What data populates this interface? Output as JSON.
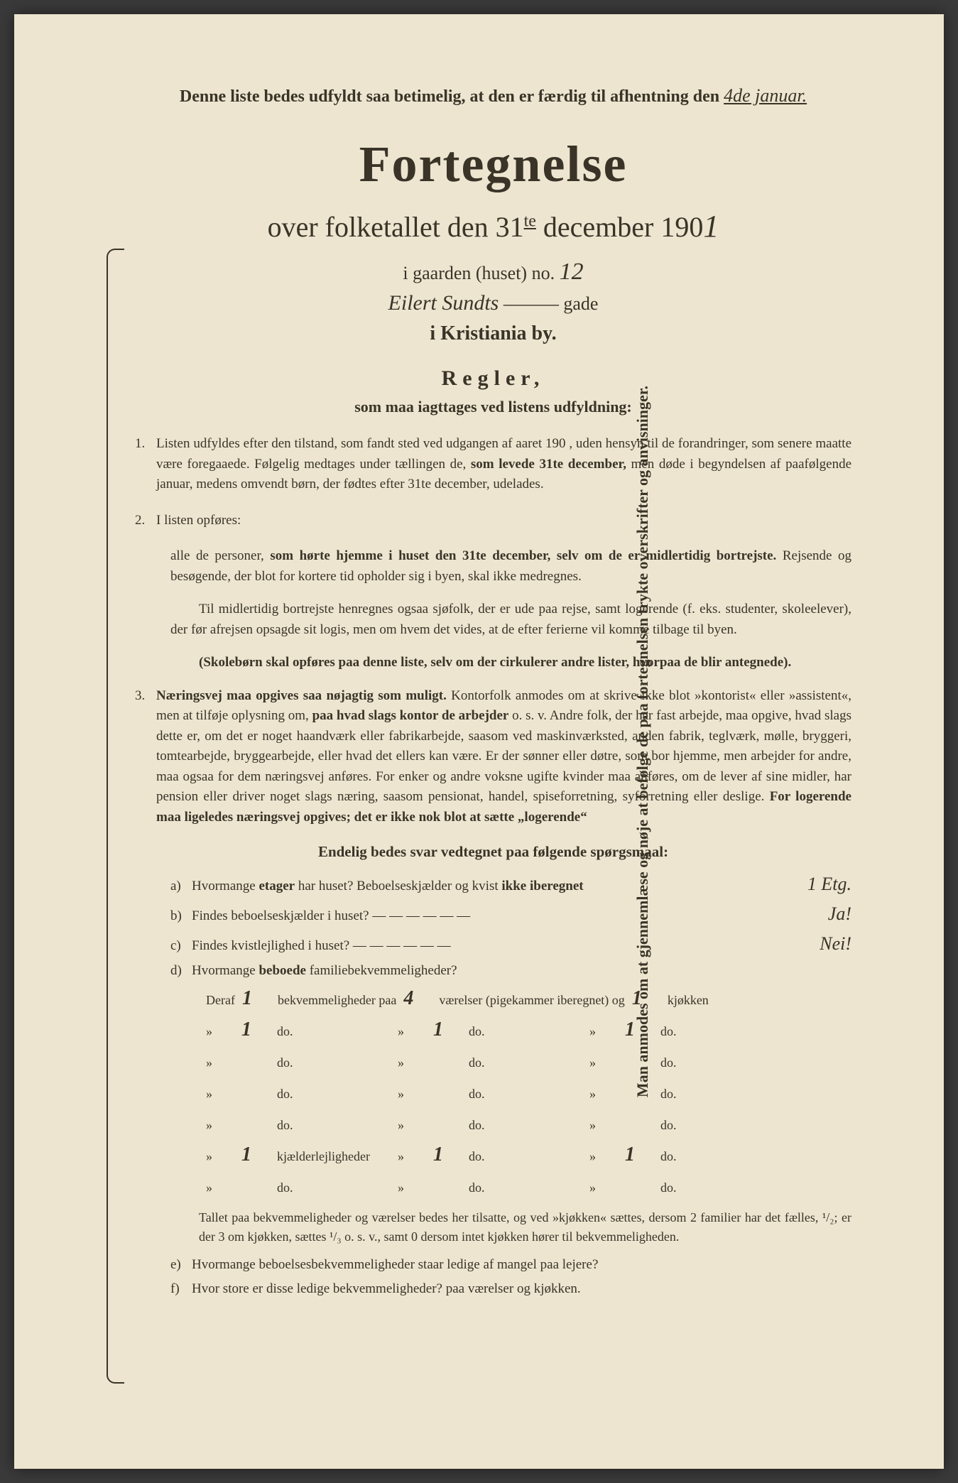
{
  "colors": {
    "paper": "#ede5d0",
    "ink": "#3a3428",
    "background": "#3a3a3a"
  },
  "vertical_text": "Man anmodes om at gjennemlæse og nøje at befølge de paa fortegnelsen trykte overskrifter og anvisninger.",
  "top_notice": {
    "prefix": "Denne liste bedes udfyldt saa betimelig, at den er færdig til afhentning den ",
    "date": "4de januar."
  },
  "main_title": "Fortegnelse",
  "subtitle": {
    "prefix": "over folketallet den 31",
    "sup": "te",
    "mid": " december 190",
    "year_hand": "1"
  },
  "location": {
    "gaarden_prefix": "i gaarden (huset) no. ",
    "house_no": "12",
    "street_name": "Eilert Sundts",
    "street_suffix": "gade",
    "city": "i Kristiania by."
  },
  "regler_title": "Regler,",
  "regler_sub": "som maa iagttages ved listens udfyldning:",
  "rules": [
    {
      "num": "1.",
      "text": "Listen udfyldes efter den tilstand, som fandt sted ved udgangen af aaret 190 , uden hensyn til de forandringer, som senere maatte være foregaaede. Følgelig medtages under tællingen de, <b>som levede 31te december,</b> men døde i begyndelsen af paafølgende januar, medens omvendt børn, der fødtes efter 31te december, udelades."
    },
    {
      "num": "2.",
      "text": "I listen opføres:"
    }
  ],
  "rule2_sub1": "alle de personer, <b>som hørte hjemme i huset den 31te december, selv om de er midlertidig bortrejste.</b> Rejsende og besøgende, der blot for kortere tid opholder sig i byen, skal ikke medregnes.",
  "rule2_sub2": "Til midlertidig bortrejste henregnes ogsaa sjøfolk, der er ude paa rejse, samt logerende (f. eks. studenter, skoleelever), der før afrejsen opsagde sit logis, men om hvem det vides, at de efter ferierne vil komme tilbage til byen.",
  "rule2_sub3": "<b>(Skolebørn skal opføres paa denne liste, selv om der cirkulerer andre lister, hvorpaa de blir antegnede).</b>",
  "rule3": {
    "num": "3.",
    "text": "<b>Næringsvej maa opgives saa nøjagtig som muligt.</b> Kontorfolk anmodes om at skrive ikke blot »kontorist« eller »assistent«, men at tilføje oplysning om, <b>paa hvad slags kontor de arbejder</b> o. s. v. Andre folk, der har fast arbejde, maa opgive, hvad slags dette er, om det er noget haandværk eller fabrikarbejde, saasom ved maskinværksted, anden fabrik, teglværk, mølle, bryggeri, tomtearbejde, bryggearbejde, eller hvad det ellers kan være. Er der sønner eller døtre, som bor hjemme, men arbejder for andre, maa ogsaa for dem næringsvej anføres. For enker og andre voksne ugifte kvinder maa anføres, om de lever af sine midler, har pension eller driver noget slags næring, saasom pensionat, handel, spiseforretning, syforretning eller deslige. <b>For logerende maa ligeledes næringsvej opgives; det er ikke nok blot at sætte „logerende“</b>"
  },
  "endelig_title": "Endelig bedes svar vedtegnet paa følgende spørgsmaal:",
  "questions": [
    {
      "label": "a)",
      "text": "Hvormange <b>etager</b> har huset? Beboelseskjælder og kvist <b>ikke iberegnet</b>",
      "answer": "1 Etg."
    },
    {
      "label": "b)",
      "text": "Findes beboelseskjælder i huset? — — — — — —",
      "answer": "Ja!"
    },
    {
      "label": "c)",
      "text": "Findes kvistlejlighed i huset? — — — — — —",
      "answer": "Nei!"
    },
    {
      "label": "d)",
      "text": "Hvormange <b>beboede</b> familiebekvemmeligheder?",
      "answer": ""
    }
  ],
  "deraf": {
    "header": {
      "c1": "Deraf",
      "v1": "1",
      "c2": "bekvemmeligheder paa",
      "v2": "4",
      "c3": "værelser (pigekammer iberegnet) og",
      "v3": "1",
      "c4": "kjøkken"
    },
    "rows": [
      {
        "c1": "»",
        "v1": "1",
        "c2": "do.",
        "cc": "»",
        "v2": "1",
        "c3": "do.",
        "cc2": "»",
        "v3": "1",
        "c4": "do."
      },
      {
        "c1": "»",
        "v1": "",
        "c2": "do.",
        "cc": "»",
        "v2": "",
        "c3": "do.",
        "cc2": "»",
        "v3": "",
        "c4": "do."
      },
      {
        "c1": "»",
        "v1": "",
        "c2": "do.",
        "cc": "»",
        "v2": "",
        "c3": "do.",
        "cc2": "»",
        "v3": "",
        "c4": "do."
      },
      {
        "c1": "»",
        "v1": "",
        "c2": "do.",
        "cc": "»",
        "v2": "",
        "c3": "do.",
        "cc2": "»",
        "v3": "",
        "c4": "do."
      },
      {
        "c1": "»",
        "v1": "1",
        "c2": "kjælderlejligheder",
        "cc": "»",
        "v2": "1",
        "c3": "do.",
        "cc2": "»",
        "v3": "1",
        "c4": "do."
      },
      {
        "c1": "»",
        "v1": "",
        "c2": "do.",
        "cc": "»",
        "v2": "",
        "c3": "do.",
        "cc2": "»",
        "v3": "",
        "c4": "do."
      }
    ]
  },
  "note": "Tallet paa bekvemmeligheder og værelser bedes her tilsatte, og ved »kjøkken« sættes, dersom 2 familier har det fælles, ¹/₂; er der 3 om kjøkken, sættes ¹/₃ o. s. v., samt 0 dersom intet kjøkken hører til bekvemmeligheden.",
  "questions_ef": [
    {
      "label": "e)",
      "text": "Hvormange beboelsesbekvemmeligheder staar ledige af mangel paa lejere?"
    },
    {
      "label": "f)",
      "text": "Hvor store er disse ledige bekvemmeligheder?          paa          værelser og          kjøkken."
    }
  ]
}
